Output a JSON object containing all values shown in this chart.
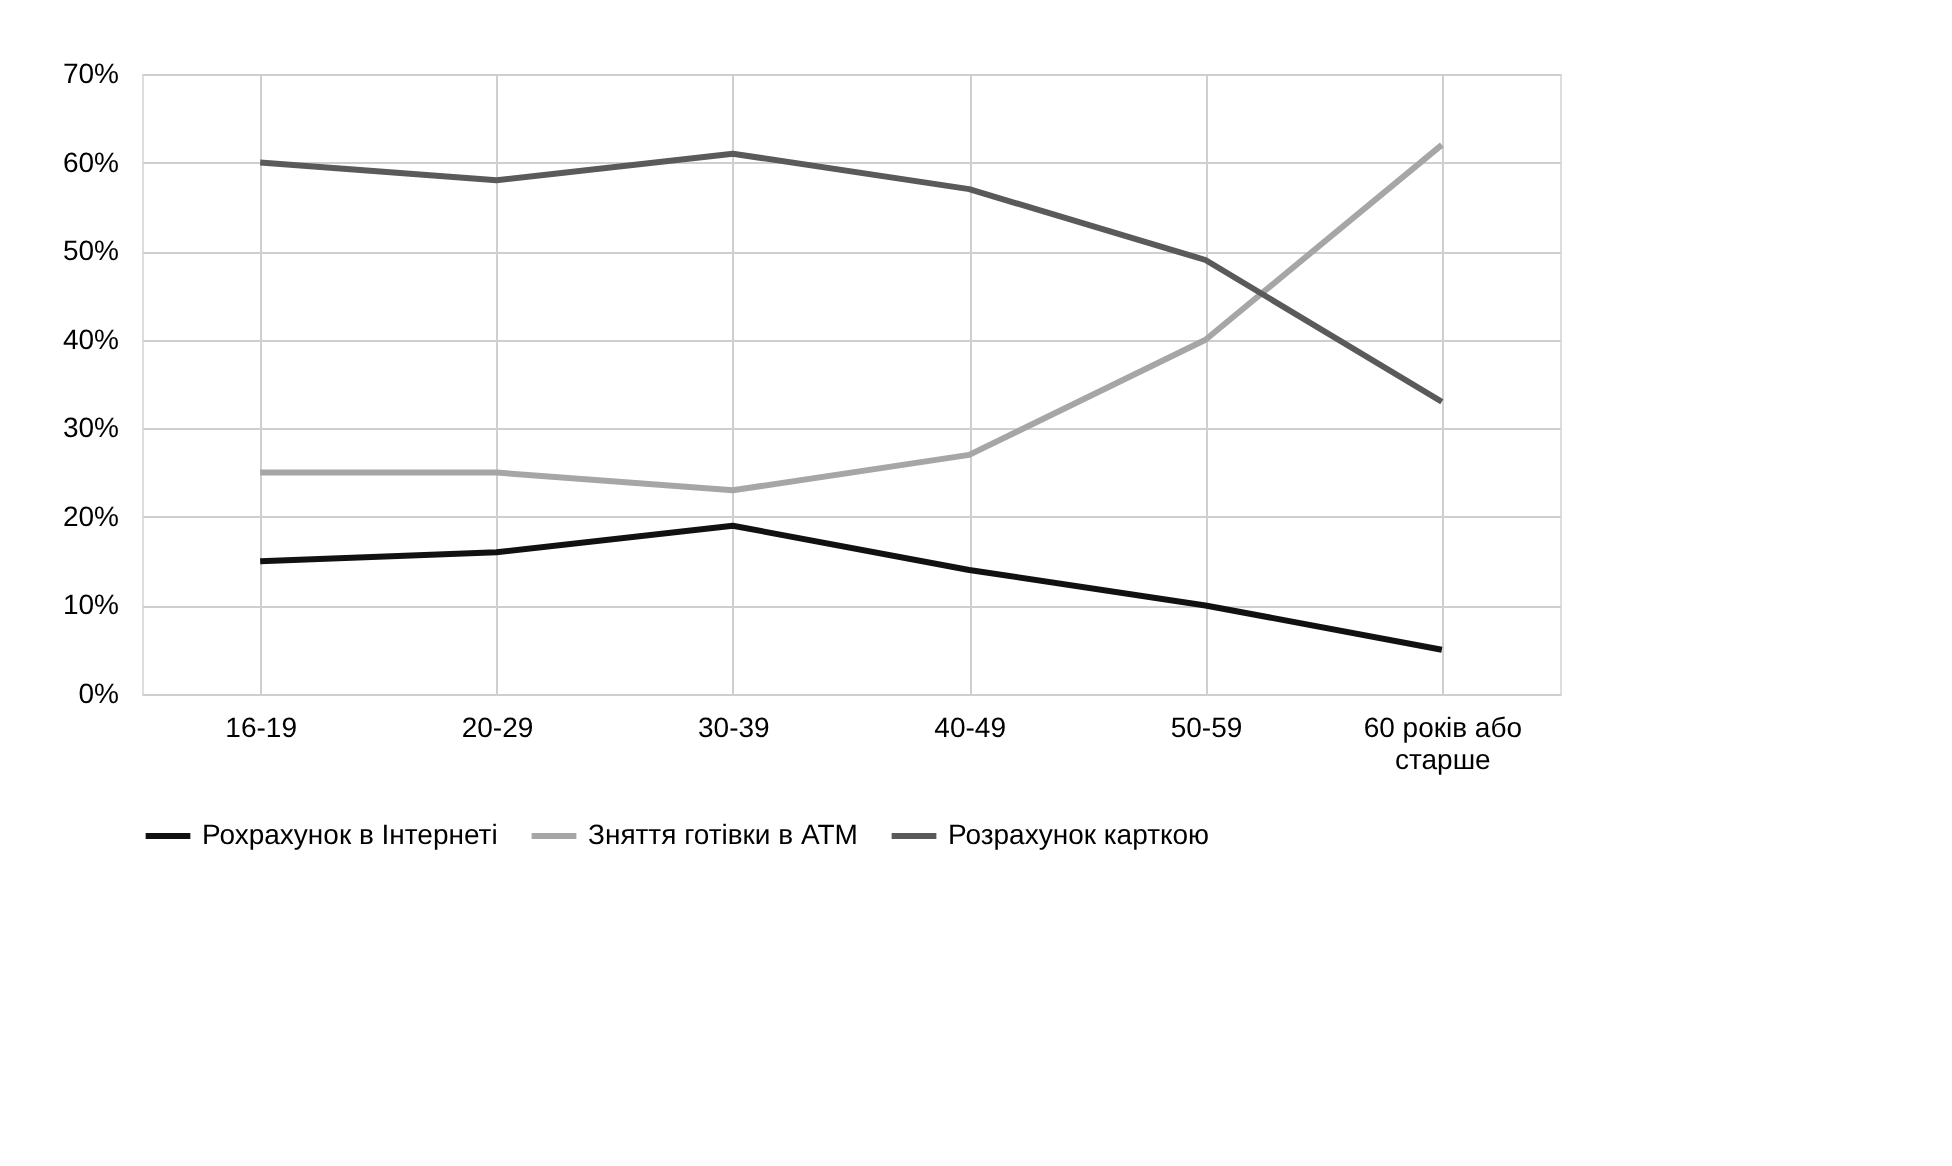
{
  "chart_data": {
    "type": "line",
    "categories": [
      "16-19",
      "20-29",
      "30-39",
      "40-49",
      "50-59",
      "60 років або старше"
    ],
    "series": [
      {
        "name": "Рохрахунок в Інтернеті",
        "color": "#111111",
        "values": [
          0.15,
          0.16,
          0.19,
          0.14,
          0.1,
          0.05
        ]
      },
      {
        "name": "Зняття готівки в АТМ",
        "color": "#a6a6a6",
        "values": [
          0.25,
          0.25,
          0.23,
          0.27,
          0.4,
          0.62
        ]
      },
      {
        "name": "Розрахунок карткою",
        "color": "#5a5a5a",
        "values": [
          0.6,
          0.58,
          0.61,
          0.57,
          0.49,
          0.33
        ]
      }
    ],
    "ylim": [
      0,
      0.7
    ],
    "yticks": [
      {
        "value": 0,
        "label": "0%"
      },
      {
        "value": 0.1,
        "label": "10%"
      },
      {
        "value": 0.2,
        "label": "20%"
      },
      {
        "value": 0.3,
        "label": "30%"
      },
      {
        "value": 0.4,
        "label": "40%"
      },
      {
        "value": 0.5,
        "label": "50%"
      },
      {
        "value": 0.6,
        "label": "60%"
      },
      {
        "value": 0.7,
        "label": "70%"
      }
    ],
    "grid": true,
    "legend": "bottom",
    "marker": "none",
    "line_style": "solid"
  }
}
